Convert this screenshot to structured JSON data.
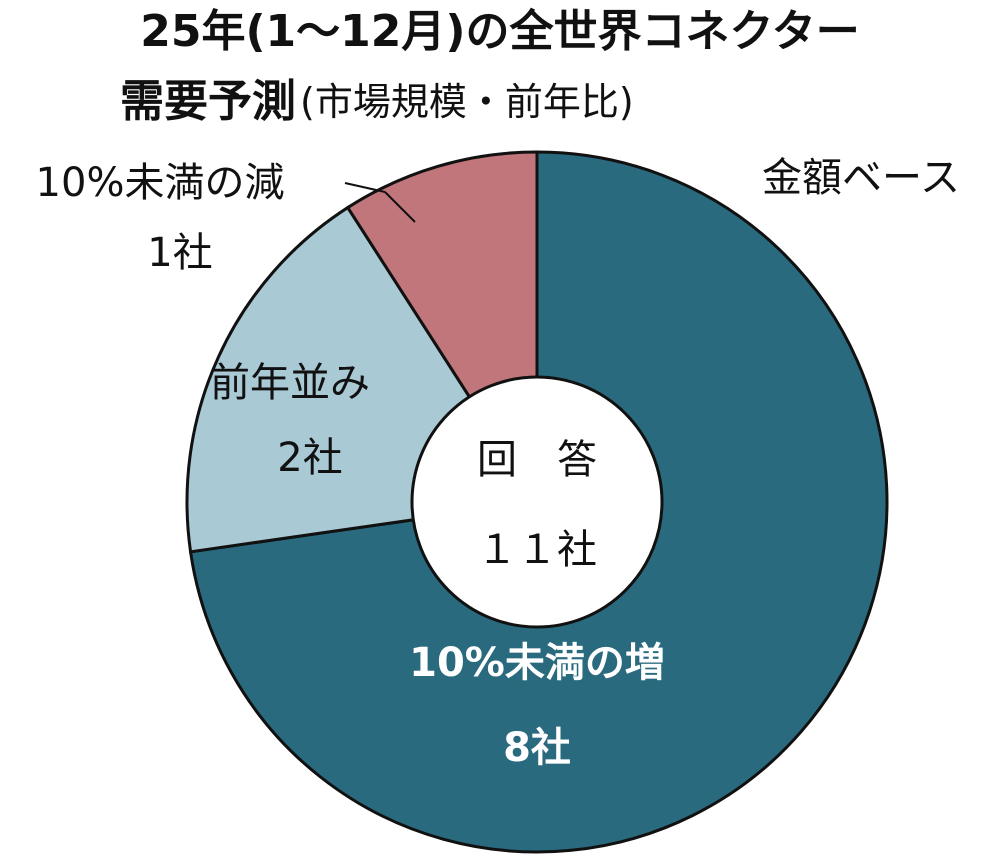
{
  "chart_data": {
    "type": "pie",
    "title": [
      "25年(1～12月)の全世界コネクター",
      "需要予測"
    ],
    "title_note": "(市場規模・前年比)",
    "subtitle": "金額ベース",
    "categories": [
      "10%未満の増",
      "前年並み",
      "10%未満の減"
    ],
    "values": [
      8,
      2,
      1
    ],
    "value_labels": [
      "8社",
      "2社",
      "1社"
    ],
    "colors": [
      "#2a6a7e",
      "#a9c9d5",
      "#c1767c"
    ],
    "center_text": [
      "回　答",
      "１１社"
    ],
    "donut": true
  }
}
